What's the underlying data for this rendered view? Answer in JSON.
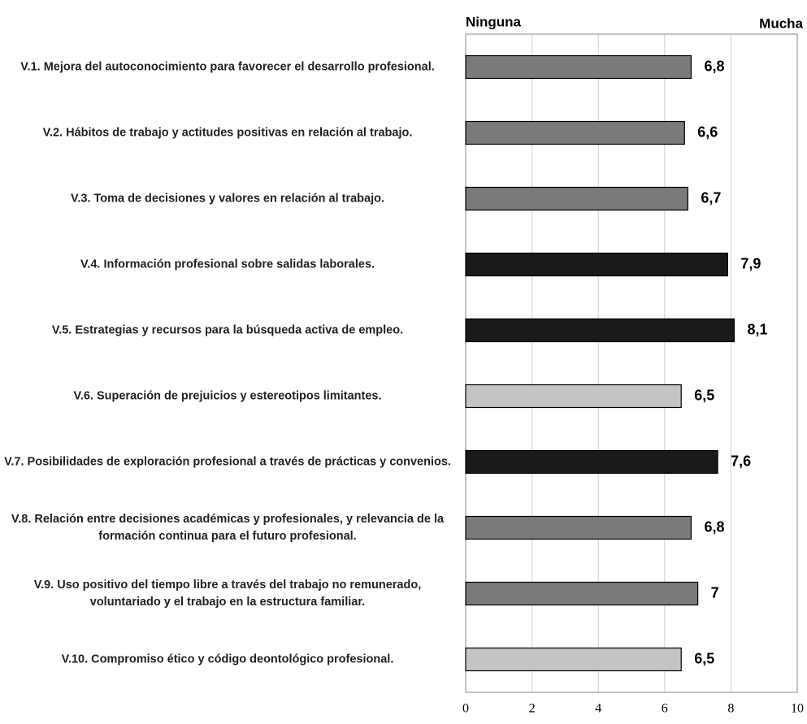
{
  "chart_data": {
    "type": "hbar",
    "x_label_left": "Ninguna",
    "x_label_right": "Mucha",
    "categories": [
      "V.1. Mejora del autoconocimiento para favorecer el desarrollo profesional.",
      "V.2. Hábitos de trabajo y actitudes positivas en relación al trabajo.",
      "V.3. Toma de decisiones y valores en relación al trabajo.",
      "V.4. Información profesional sobre salidas laborales.",
      "V.5. Estrategias y recursos para la búsqueda activa de empleo.",
      "V.6. Superación de prejuicios y estereotipos limitantes.",
      "V.7. Posibilidades de exploración profesional a través de prácticas y convenios.",
      "V.8. Relación entre decisiones académicas y profesionales, y relevancia de la formación continua para el futuro profesional.",
      "V.9. Uso positivo del tiempo libre a través del trabajo no remunerado, voluntariado y el trabajo en la estructura familiar.",
      "V.10. Compromiso ético y código deontológico profesional."
    ],
    "values": [
      6.8,
      6.6,
      6.7,
      7.9,
      8.1,
      6.5,
      7.6,
      6.8,
      7,
      6.5
    ],
    "value_labels": [
      "6,8",
      "6,6",
      "6,7",
      "7,9",
      "8,1",
      "6,5",
      "7,6",
      "6,8",
      "7",
      "6,5"
    ],
    "colors": [
      "#7a7a7a",
      "#7a7a7a",
      "#7a7a7a",
      "#1a1a1a",
      "#1a1a1a",
      "#c4c4c4",
      "#1a1a1a",
      "#7a7a7a",
      "#7a7a7a",
      "#c4c4c4"
    ],
    "xlim": [
      0,
      10
    ],
    "xticks": [
      0,
      2,
      4,
      6,
      8,
      10
    ],
    "grid": true
  }
}
